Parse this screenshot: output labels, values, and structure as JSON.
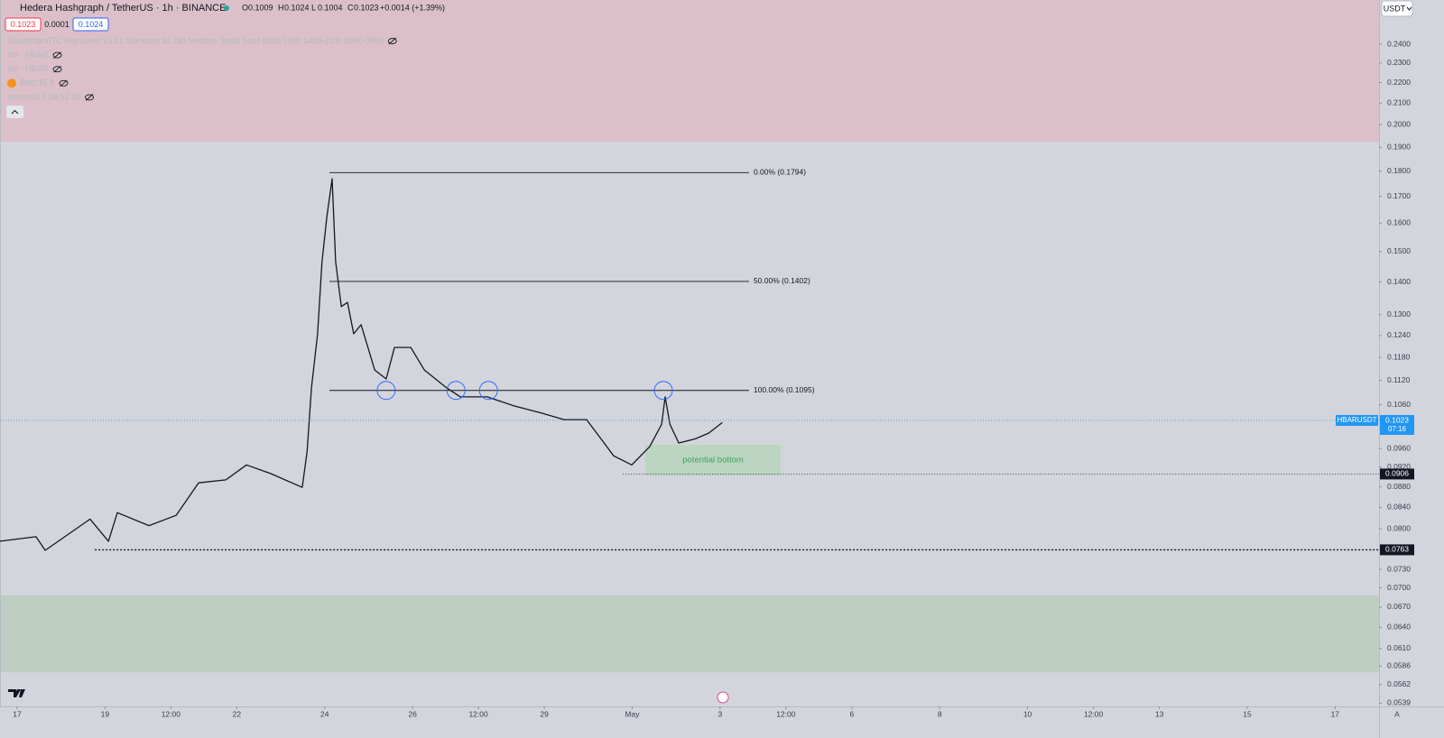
{
  "header": {
    "symbol": "Hedera Hashgraph / TetherUS · 1h · BINANCE",
    "ohlc": [
      {
        "key": "O",
        "value": 0.1009
      },
      {
        "key": "H",
        "value": 0.1024
      },
      {
        "key": "L",
        "value": 0.1004
      },
      {
        "key": "C",
        "value": 0.1023
      }
    ],
    "change": "+0.0014 (+1.39%)",
    "sell": 0.1023,
    "spread": 0.0001,
    "buy": 0.1024,
    "currency": "USDT",
    "scale_mode": "A"
  },
  "indicators": [
    "SpacemanBTC Key Level V13.1 Standard 30 250 Medium Small Solid 0800-1600 1400-2100 0000-0800",
    "Vol · HBAR",
    "Vol · HBAR",
    "BNC:BLX",
    "Ichimoku 9 26 52 26"
  ],
  "chart_data": {
    "type": "line",
    "log_scale": true,
    "grid": false,
    "xlim": [
      -0.39,
      31.0
    ],
    "ylim": [
      0.0535,
      0.2653
    ],
    "x": [
      -0.39,
      0.43,
      0.64,
      1.66,
      2.08,
      2.28,
      3.0,
      3.62,
      4.13,
      4.75,
      5.22,
      5.77,
      6.49,
      6.6,
      6.7,
      6.84,
      6.94,
      7.05,
      7.17,
      7.25,
      7.38,
      7.52,
      7.66,
      7.83,
      8.14,
      8.4,
      8.59,
      8.96,
      9.27,
      9.78,
      10.09,
      10.7,
      11.32,
      11.94,
      12.45,
      12.96,
      13.27,
      13.58,
      13.99,
      14.4,
      14.67,
      14.75,
      14.86,
      15.06,
      15.43,
      15.74,
      16.05
    ],
    "series": [
      {
        "name": "HBARUSDT",
        "color": "#131722",
        "values": [
          0.0778,
          0.0786,
          0.0762,
          0.0818,
          0.0778,
          0.083,
          0.0806,
          0.0825,
          0.0888,
          0.0894,
          0.0925,
          0.0907,
          0.0879,
          0.0954,
          0.1101,
          0.1245,
          0.1466,
          0.1624,
          0.1769,
          0.1466,
          0.1324,
          0.1337,
          0.1245,
          0.1271,
          0.1147,
          0.1124,
          0.1207,
          0.1207,
          0.1147,
          0.1101,
          0.1079,
          0.1079,
          0.1057,
          0.104,
          0.1025,
          0.1025,
          0.0984,
          0.0944,
          0.0925,
          0.0964,
          0.1014,
          0.1079,
          0.1014,
          0.0972,
          0.0981,
          0.0994,
          0.1018
        ]
      }
    ],
    "last_price": 0.1023,
    "countdown": "07:16",
    "yticks": [
      {
        "value": 0.24,
        "label": "0.2400"
      },
      {
        "value": 0.23,
        "label": "0.2300"
      },
      {
        "value": 0.22,
        "label": "0.2200"
      },
      {
        "value": 0.21,
        "label": "0.2100"
      },
      {
        "value": 0.2,
        "label": "0.2000"
      },
      {
        "value": 0.19,
        "label": "0.1900"
      },
      {
        "value": 0.18,
        "label": "0.1800"
      },
      {
        "value": 0.17,
        "label": "0.1700"
      },
      {
        "value": 0.16,
        "label": "0.1600"
      },
      {
        "value": 0.15,
        "label": "0.1500"
      },
      {
        "value": 0.14,
        "label": "0.1400"
      },
      {
        "value": 0.13,
        "label": "0.1300"
      },
      {
        "value": 0.124,
        "label": "0.1240"
      },
      {
        "value": 0.118,
        "label": "0.1180"
      },
      {
        "value": 0.112,
        "label": "0.1120"
      },
      {
        "value": 0.106,
        "label": "0.1060"
      },
      {
        "value": 0.096,
        "label": "0.0960"
      },
      {
        "value": 0.092,
        "label": "0.0920"
      },
      {
        "value": 0.088,
        "label": "0.0880"
      },
      {
        "value": 0.084,
        "label": "0.0840"
      },
      {
        "value": 0.08,
        "label": "0.0800"
      },
      {
        "value": 0.073,
        "label": "0.0730"
      },
      {
        "value": 0.07,
        "label": "0.0700"
      },
      {
        "value": 0.067,
        "label": "0.0670"
      },
      {
        "value": 0.064,
        "label": "0.0640"
      },
      {
        "value": 0.061,
        "label": "0.0610"
      },
      0.0586,
      0.0562,
      0.0539
    ],
    "xticks": [
      {
        "value": 0,
        "label": "17"
      },
      {
        "value": 2,
        "label": "19"
      },
      {
        "value": 3.5,
        "label": "12:00"
      },
      {
        "value": 5,
        "label": "22"
      },
      {
        "value": 7,
        "label": "24"
      },
      {
        "value": 9,
        "label": "26"
      },
      {
        "value": 10.5,
        "label": "12:00"
      },
      {
        "value": 12,
        "label": "29"
      },
      {
        "value": 14,
        "label": "May"
      },
      {
        "value": 16,
        "label": "3"
      },
      {
        "value": 17.5,
        "label": "12:00"
      },
      {
        "value": 19,
        "label": "6"
      },
      {
        "value": 21,
        "label": "8"
      },
      {
        "value": 23,
        "label": "10"
      },
      {
        "value": 24.5,
        "label": "12:00"
      },
      {
        "value": 26,
        "label": "13"
      },
      {
        "value": 28,
        "label": "15"
      },
      {
        "value": 30,
        "label": "17"
      }
    ],
    "zones": [
      {
        "from": 0.1924,
        "to": 0.2653,
        "color": "#dbc0c9"
      },
      {
        "from": 0.0578,
        "to": 0.0688,
        "color": "#bdcdc2"
      }
    ],
    "fib_range": [
      7.11,
      16.66
    ],
    "fib_levels": [
      {
        "label": "0.00% (0.1794)",
        "value": 0.1794
      },
      {
        "label": "50.00% (0.1402)",
        "value": 0.1402
      },
      {
        "label": "100.00% (0.1095)",
        "value": 0.1095
      }
    ],
    "circles_x": [
      8.4,
      9.99,
      10.73,
      14.71
    ],
    "levels": [
      {
        "value": 0.0906,
        "from": 13.79
      },
      {
        "value": 0.0763,
        "from": 1.77
      }
    ],
    "box": {
      "label": "potential bottom",
      "x": [
        14.3,
        17.38
      ],
      "y": [
        0.0903,
        0.0968
      ]
    }
  }
}
